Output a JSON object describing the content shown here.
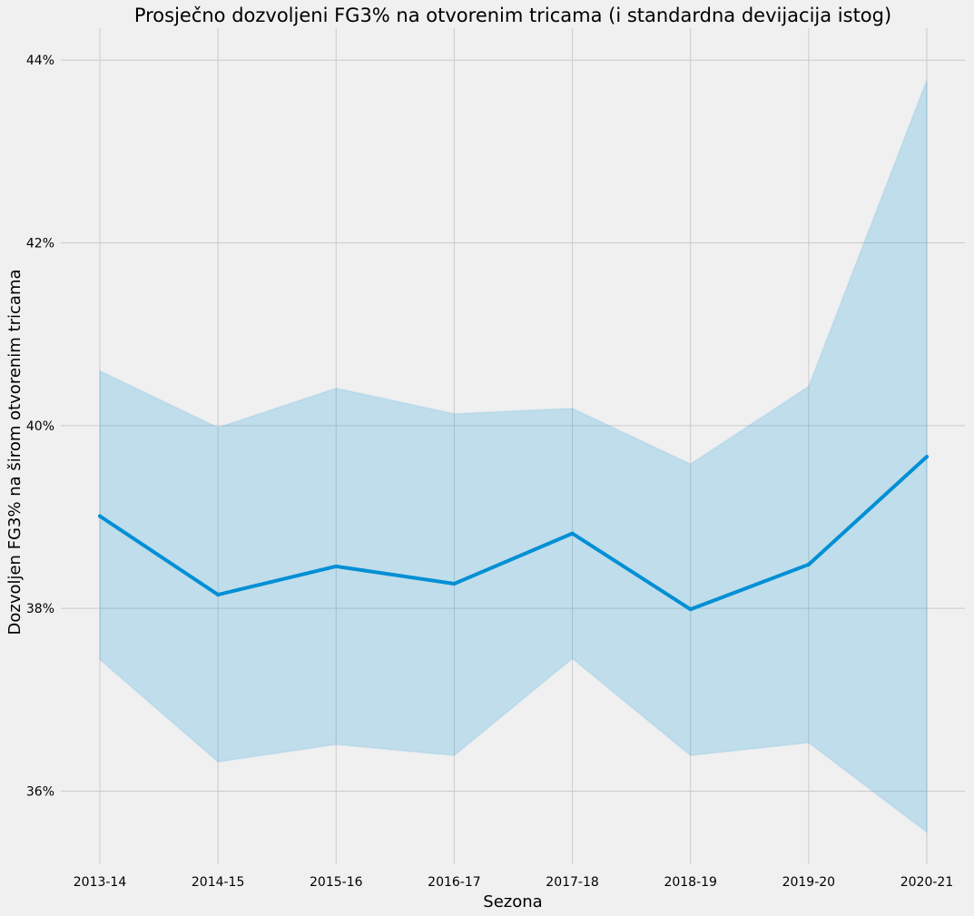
{
  "chart_data": {
    "type": "line",
    "title": "Prosječno dozvoljeni FG3% na otvorenim tricama (i standardna devijacija istog)",
    "xlabel": "Sezona",
    "ylabel": "Dozvoljen FG3% na širom otvorenim tricama",
    "categories": [
      "2013-14",
      "2014-15",
      "2015-16",
      "2016-17",
      "2017-18",
      "2018-19",
      "2019-20",
      "2020-21"
    ],
    "series": [
      {
        "values": [
          39.01,
          38.15,
          38.46,
          38.27,
          38.82,
          37.99,
          38.48,
          39.66
        ],
        "band_upper": [
          40.6,
          39.98,
          40.41,
          40.13,
          40.19,
          39.58,
          40.43,
          43.78
        ],
        "band_lower": [
          37.44,
          36.32,
          36.51,
          36.39,
          37.45,
          36.39,
          36.53,
          35.55
        ]
      }
    ],
    "ylim": [
      35.2,
      44.35
    ],
    "yticks": [
      36,
      38,
      40,
      42,
      44
    ],
    "ytick_labels": [
      "36%",
      "38%",
      "40%",
      "42%",
      "44%"
    ],
    "grid": true,
    "colors": {
      "line": "#008fd5",
      "band": "#008fd5",
      "background": "#f0f0f0",
      "grid": "#cbcbcb"
    }
  }
}
